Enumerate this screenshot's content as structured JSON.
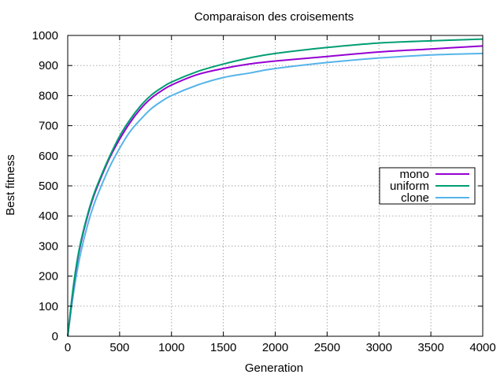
{
  "chart_data": {
    "type": "line",
    "title": "Comparaison des croisements",
    "xlabel": "Generation",
    "ylabel": "Best fitness",
    "xlim": [
      0,
      4000
    ],
    "ylim": [
      0,
      1000
    ],
    "xticks": [
      0,
      500,
      1000,
      1500,
      2000,
      2500,
      3000,
      3500,
      4000
    ],
    "yticks": [
      0,
      100,
      200,
      300,
      400,
      500,
      600,
      700,
      800,
      900,
      1000
    ],
    "grid": true,
    "legend_position": "right-middle",
    "series": [
      {
        "name": "mono",
        "color": "#9400d3",
        "x": [
          0,
          50,
          100,
          150,
          200,
          250,
          300,
          400,
          500,
          600,
          700,
          800,
          900,
          1000,
          1250,
          1500,
          1750,
          2000,
          2500,
          3000,
          3500,
          4000
        ],
        "y": [
          0,
          150,
          265,
          345,
          410,
          465,
          510,
          590,
          655,
          710,
          755,
          790,
          815,
          835,
          870,
          890,
          905,
          915,
          930,
          945,
          955,
          965
        ]
      },
      {
        "name": "uniform",
        "color": "#009e73",
        "x": [
          0,
          50,
          100,
          150,
          200,
          250,
          300,
          400,
          500,
          600,
          700,
          800,
          900,
          1000,
          1250,
          1500,
          1750,
          2000,
          2500,
          3000,
          3500,
          4000
        ],
        "y": [
          0,
          155,
          270,
          350,
          415,
          470,
          515,
          595,
          665,
          720,
          765,
          800,
          825,
          845,
          880,
          905,
          925,
          940,
          960,
          975,
          982,
          988
        ]
      },
      {
        "name": "clone",
        "color": "#56b4e9",
        "x": [
          0,
          50,
          100,
          150,
          200,
          250,
          300,
          400,
          500,
          600,
          700,
          800,
          900,
          1000,
          1250,
          1500,
          1750,
          2000,
          2500,
          3000,
          3500,
          4000
        ],
        "y": [
          0,
          130,
          235,
          315,
          380,
          435,
          480,
          560,
          625,
          680,
          720,
          755,
          780,
          800,
          835,
          860,
          875,
          890,
          910,
          925,
          935,
          940
        ]
      }
    ]
  }
}
